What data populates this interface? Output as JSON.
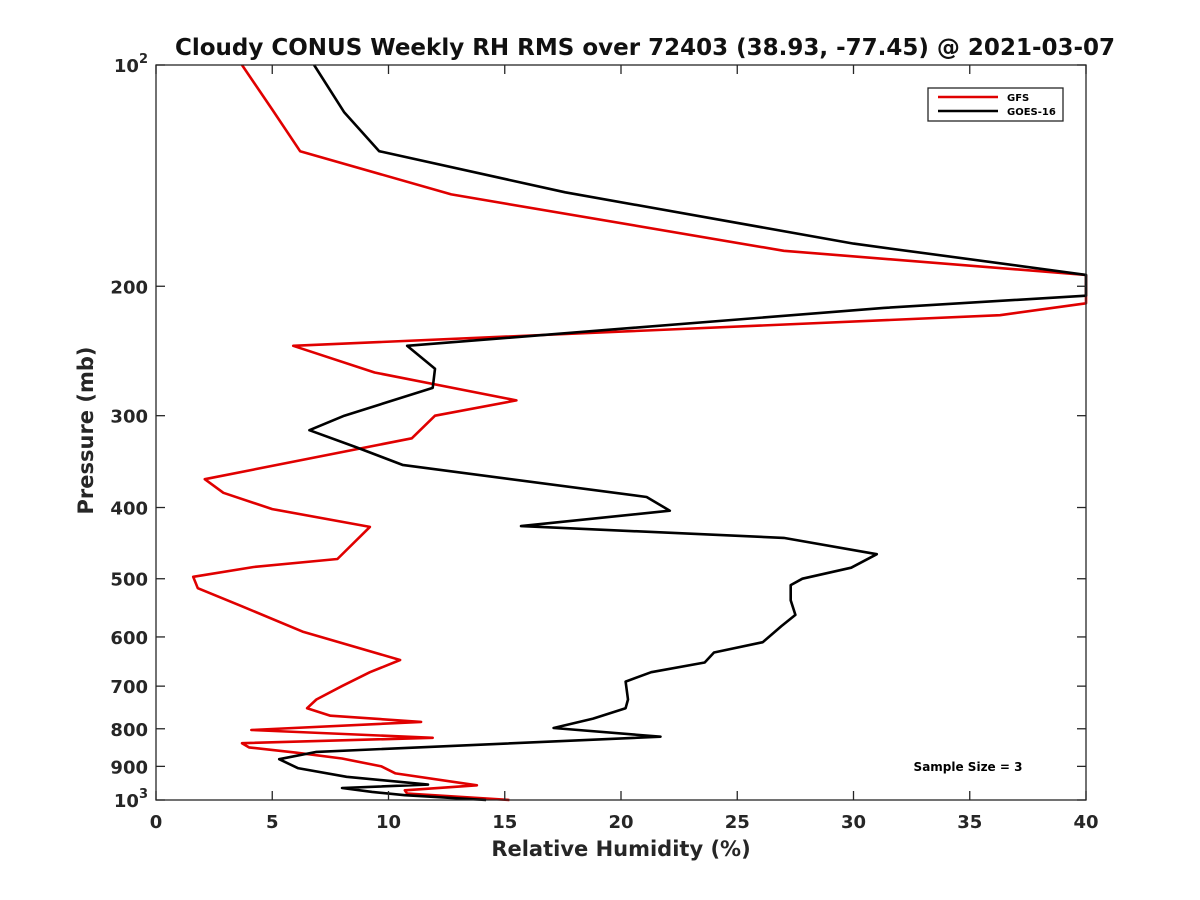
{
  "chart_data": {
    "type": "line",
    "title": "Cloudy CONUS Weekly RH RMS over 72403 (38.93, -77.45) @ 2021-03-07",
    "xlabel": "Relative Humidity (%)",
    "ylabel": "Pressure (mb)",
    "xlim": [
      0,
      40
    ],
    "ylim": [
      1000,
      100
    ],
    "y_scale": "log",
    "y_reversed": true,
    "grid": false,
    "legend_position": "top-right",
    "x_ticks": [
      "0",
      "5",
      "10",
      "15",
      "20",
      "25",
      "30",
      "35",
      "40"
    ],
    "y_ticks": [
      {
        "value": 100,
        "base": "10",
        "exp": "2"
      },
      {
        "value": 200,
        "label": "200"
      },
      {
        "value": 300,
        "label": "300"
      },
      {
        "value": 400,
        "label": "400"
      },
      {
        "value": 500,
        "label": "500"
      },
      {
        "value": 600,
        "label": "600"
      },
      {
        "value": 700,
        "label": "700"
      },
      {
        "value": 800,
        "label": "800"
      },
      {
        "value": 900,
        "label": "900"
      },
      {
        "value": 1000,
        "base": "10",
        "exp": "3"
      }
    ],
    "series": [
      {
        "name": "GFS",
        "color": "#e00000",
        "points": [
          [
            3.7,
            100
          ],
          [
            5.0,
            115
          ],
          [
            6.2,
            131
          ],
          [
            12.7,
            150
          ],
          [
            27.0,
            179
          ],
          [
            40.0,
            193
          ],
          [
            40.0,
            211
          ],
          [
            36.3,
            219
          ],
          [
            5.9,
            241
          ],
          [
            9.4,
            262
          ],
          [
            15.5,
            286
          ],
          [
            12.0,
            300
          ],
          [
            11.0,
            322
          ],
          [
            2.1,
            366
          ],
          [
            2.9,
            382
          ],
          [
            5.0,
            402
          ],
          [
            9.2,
            425
          ],
          [
            7.8,
            470
          ],
          [
            4.2,
            482
          ],
          [
            1.6,
            497
          ],
          [
            1.8,
            515
          ],
          [
            3.7,
            545
          ],
          [
            6.3,
            590
          ],
          [
            10.5,
            645
          ],
          [
            9.2,
            670
          ],
          [
            8.0,
            700
          ],
          [
            6.9,
            730
          ],
          [
            6.5,
            750
          ],
          [
            7.5,
            768
          ],
          [
            11.4,
            783
          ],
          [
            4.1,
            803
          ],
          [
            11.9,
            823
          ],
          [
            3.7,
            837
          ],
          [
            4.0,
            848
          ],
          [
            6.0,
            862
          ],
          [
            8.0,
            878
          ],
          [
            9.7,
            900
          ],
          [
            10.3,
            920
          ],
          [
            13.8,
            955
          ],
          [
            10.7,
            970
          ],
          [
            10.8,
            980
          ],
          [
            15.2,
            1000
          ]
        ]
      },
      {
        "name": "GOES-16",
        "color": "#000000",
        "points": [
          [
            6.8,
            100
          ],
          [
            8.1,
            116
          ],
          [
            9.6,
            131
          ],
          [
            17.6,
            149
          ],
          [
            30.0,
            175
          ],
          [
            40.0,
            193
          ],
          [
            40.0,
            206
          ],
          [
            31.3,
            214
          ],
          [
            10.8,
            241
          ],
          [
            12.0,
            259
          ],
          [
            11.9,
            275
          ],
          [
            8.1,
            300
          ],
          [
            6.6,
            314
          ],
          [
            8.6,
            331
          ],
          [
            10.6,
            350
          ],
          [
            21.1,
            387
          ],
          [
            22.1,
            404
          ],
          [
            15.7,
            424
          ],
          [
            27.0,
            440
          ],
          [
            31.0,
            463
          ],
          [
            29.9,
            483
          ],
          [
            27.8,
            500
          ],
          [
            27.3,
            510
          ],
          [
            27.3,
            535
          ],
          [
            27.5,
            560
          ],
          [
            26.9,
            580
          ],
          [
            26.1,
            610
          ],
          [
            24.0,
            630
          ],
          [
            23.6,
            650
          ],
          [
            21.3,
            670
          ],
          [
            20.2,
            690
          ],
          [
            20.3,
            730
          ],
          [
            20.2,
            750
          ],
          [
            18.8,
            775
          ],
          [
            17.1,
            798
          ],
          [
            21.7,
            820
          ],
          [
            6.9,
            860
          ],
          [
            5.3,
            880
          ],
          [
            6.1,
            905
          ],
          [
            8.2,
            930
          ],
          [
            11.7,
            953
          ],
          [
            8.0,
            963
          ],
          [
            9.3,
            975
          ],
          [
            10.7,
            985
          ],
          [
            14.2,
            1000
          ]
        ]
      }
    ],
    "annotations": [
      {
        "text": "Sample Size = 3"
      }
    ]
  }
}
